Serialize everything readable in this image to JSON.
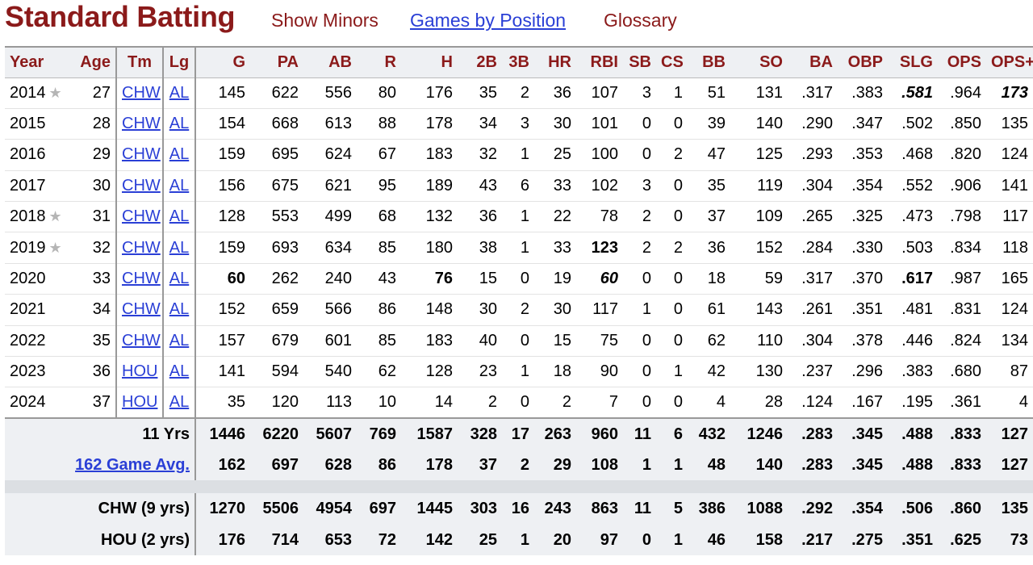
{
  "header": {
    "title": "Standard Batting",
    "links": [
      "Show Minors",
      "Games by Position",
      "Glossary"
    ]
  },
  "columns": [
    "Year",
    "Age",
    "Tm",
    "Lg",
    "G",
    "PA",
    "AB",
    "R",
    "H",
    "2B",
    "3B",
    "HR",
    "RBI",
    "SB",
    "CS",
    "BB",
    "SO",
    "BA",
    "OBP",
    "SLG",
    "OPS",
    "OPS+"
  ],
  "star_icon": "star-icon",
  "seasons": [
    {
      "year": "2014",
      "star": true,
      "age": "27",
      "tm": "CHW",
      "lg": "AL",
      "g": "145",
      "pa": "622",
      "ab": "556",
      "r": "80",
      "h": "176",
      "b2": "35",
      "b3": "2",
      "hr": "36",
      "rbi": "107",
      "sb": "3",
      "cs": "1",
      "bb": "51",
      "so": "131",
      "ba": ".317",
      "obp": ".383",
      "slg": ".581",
      "ops": ".964",
      "opsp": "173"
    },
    {
      "year": "2015",
      "star": false,
      "age": "28",
      "tm": "CHW",
      "lg": "AL",
      "g": "154",
      "pa": "668",
      "ab": "613",
      "r": "88",
      "h": "178",
      "b2": "34",
      "b3": "3",
      "hr": "30",
      "rbi": "101",
      "sb": "0",
      "cs": "0",
      "bb": "39",
      "so": "140",
      "ba": ".290",
      "obp": ".347",
      "slg": ".502",
      "ops": ".850",
      "opsp": "135"
    },
    {
      "year": "2016",
      "star": false,
      "age": "29",
      "tm": "CHW",
      "lg": "AL",
      "g": "159",
      "pa": "695",
      "ab": "624",
      "r": "67",
      "h": "183",
      "b2": "32",
      "b3": "1",
      "hr": "25",
      "rbi": "100",
      "sb": "0",
      "cs": "2",
      "bb": "47",
      "so": "125",
      "ba": ".293",
      "obp": ".353",
      "slg": ".468",
      "ops": ".820",
      "opsp": "124"
    },
    {
      "year": "2017",
      "star": false,
      "age": "30",
      "tm": "CHW",
      "lg": "AL",
      "g": "156",
      "pa": "675",
      "ab": "621",
      "r": "95",
      "h": "189",
      "b2": "43",
      "b3": "6",
      "hr": "33",
      "rbi": "102",
      "sb": "3",
      "cs": "0",
      "bb": "35",
      "so": "119",
      "ba": ".304",
      "obp": ".354",
      "slg": ".552",
      "ops": ".906",
      "opsp": "141"
    },
    {
      "year": "2018",
      "star": true,
      "age": "31",
      "tm": "CHW",
      "lg": "AL",
      "g": "128",
      "pa": "553",
      "ab": "499",
      "r": "68",
      "h": "132",
      "b2": "36",
      "b3": "1",
      "hr": "22",
      "rbi": "78",
      "sb": "2",
      "cs": "0",
      "bb": "37",
      "so": "109",
      "ba": ".265",
      "obp": ".325",
      "slg": ".473",
      "ops": ".798",
      "opsp": "117"
    },
    {
      "year": "2019",
      "star": true,
      "age": "32",
      "tm": "CHW",
      "lg": "AL",
      "g": "159",
      "pa": "693",
      "ab": "634",
      "r": "85",
      "h": "180",
      "b2": "38",
      "b3": "1",
      "hr": "33",
      "rbi": "123",
      "sb": "2",
      "cs": "2",
      "bb": "36",
      "so": "152",
      "ba": ".284",
      "obp": ".330",
      "slg": ".503",
      "ops": ".834",
      "opsp": "118"
    },
    {
      "year": "2020",
      "star": false,
      "age": "33",
      "tm": "CHW",
      "lg": "AL",
      "g": "60",
      "pa": "262",
      "ab": "240",
      "r": "43",
      "h": "76",
      "b2": "15",
      "b3": "0",
      "hr": "19",
      "rbi": "60",
      "sb": "0",
      "cs": "0",
      "bb": "18",
      "so": "59",
      "ba": ".317",
      "obp": ".370",
      "slg": ".617",
      "ops": ".987",
      "opsp": "165"
    },
    {
      "year": "2021",
      "star": false,
      "age": "34",
      "tm": "CHW",
      "lg": "AL",
      "g": "152",
      "pa": "659",
      "ab": "566",
      "r": "86",
      "h": "148",
      "b2": "30",
      "b3": "2",
      "hr": "30",
      "rbi": "117",
      "sb": "1",
      "cs": "0",
      "bb": "61",
      "so": "143",
      "ba": ".261",
      "obp": ".351",
      "slg": ".481",
      "ops": ".831",
      "opsp": "124"
    },
    {
      "year": "2022",
      "star": false,
      "age": "35",
      "tm": "CHW",
      "lg": "AL",
      "g": "157",
      "pa": "679",
      "ab": "601",
      "r": "85",
      "h": "183",
      "b2": "40",
      "b3": "0",
      "hr": "15",
      "rbi": "75",
      "sb": "0",
      "cs": "0",
      "bb": "62",
      "so": "110",
      "ba": ".304",
      "obp": ".378",
      "slg": ".446",
      "ops": ".824",
      "opsp": "134"
    },
    {
      "year": "2023",
      "star": false,
      "age": "36",
      "tm": "HOU",
      "lg": "AL",
      "g": "141",
      "pa": "594",
      "ab": "540",
      "r": "62",
      "h": "128",
      "b2": "23",
      "b3": "1",
      "hr": "18",
      "rbi": "90",
      "sb": "0",
      "cs": "1",
      "bb": "42",
      "so": "130",
      "ba": ".237",
      "obp": ".296",
      "slg": ".383",
      "ops": ".680",
      "opsp": "87"
    },
    {
      "year": "2024",
      "star": false,
      "age": "37",
      "tm": "HOU",
      "lg": "AL",
      "g": "35",
      "pa": "120",
      "ab": "113",
      "r": "10",
      "h": "14",
      "b2": "2",
      "b3": "0",
      "hr": "2",
      "rbi": "7",
      "sb": "0",
      "cs": "0",
      "bb": "4",
      "so": "28",
      "ba": ".124",
      "obp": ".167",
      "slg": ".195",
      "ops": ".361",
      "opsp": "4"
    }
  ],
  "totals": [
    {
      "label": "11 Yrs",
      "link": false,
      "g": "1446",
      "pa": "6220",
      "ab": "5607",
      "r": "769",
      "h": "1587",
      "b2": "328",
      "b3": "17",
      "hr": "263",
      "rbi": "960",
      "sb": "11",
      "cs": "6",
      "bb": "432",
      "so": "1246",
      "ba": ".283",
      "obp": ".345",
      "slg": ".488",
      "ops": ".833",
      "opsp": "127"
    },
    {
      "label": "162 Game Avg.",
      "link": true,
      "g": "162",
      "pa": "697",
      "ab": "628",
      "r": "86",
      "h": "178",
      "b2": "37",
      "b3": "2",
      "hr": "29",
      "rbi": "108",
      "sb": "1",
      "cs": "1",
      "bb": "48",
      "so": "140",
      "ba": ".283",
      "obp": ".345",
      "slg": ".488",
      "ops": ".833",
      "opsp": "127"
    },
    {
      "label": "CHW (9 yrs)",
      "link": false,
      "g": "1270",
      "pa": "5506",
      "ab": "4954",
      "r": "697",
      "h": "1445",
      "b2": "303",
      "b3": "16",
      "hr": "243",
      "rbi": "863",
      "sb": "11",
      "cs": "5",
      "bb": "386",
      "so": "1088",
      "ba": ".292",
      "obp": ".354",
      "slg": ".506",
      "ops": ".860",
      "opsp": "135"
    },
    {
      "label": "HOU (2 yrs)",
      "link": false,
      "g": "176",
      "pa": "714",
      "ab": "653",
      "r": "72",
      "h": "142",
      "b2": "25",
      "b3": "1",
      "hr": "20",
      "rbi": "97",
      "sb": "0",
      "cs": "1",
      "bb": "46",
      "so": "158",
      "ba": ".217",
      "obp": ".275",
      "slg": ".351",
      "ops": ".625",
      "opsp": "73"
    }
  ],
  "highlights": {
    "bold": [
      [
        "2019",
        "rbi"
      ],
      [
        "2020",
        "g"
      ],
      [
        "2020",
        "h"
      ],
      [
        "2020",
        "slg"
      ]
    ],
    "bold_italic": [
      [
        "2014",
        "slg"
      ],
      [
        "2014",
        "opsp"
      ],
      [
        "2020",
        "rbi"
      ]
    ]
  }
}
